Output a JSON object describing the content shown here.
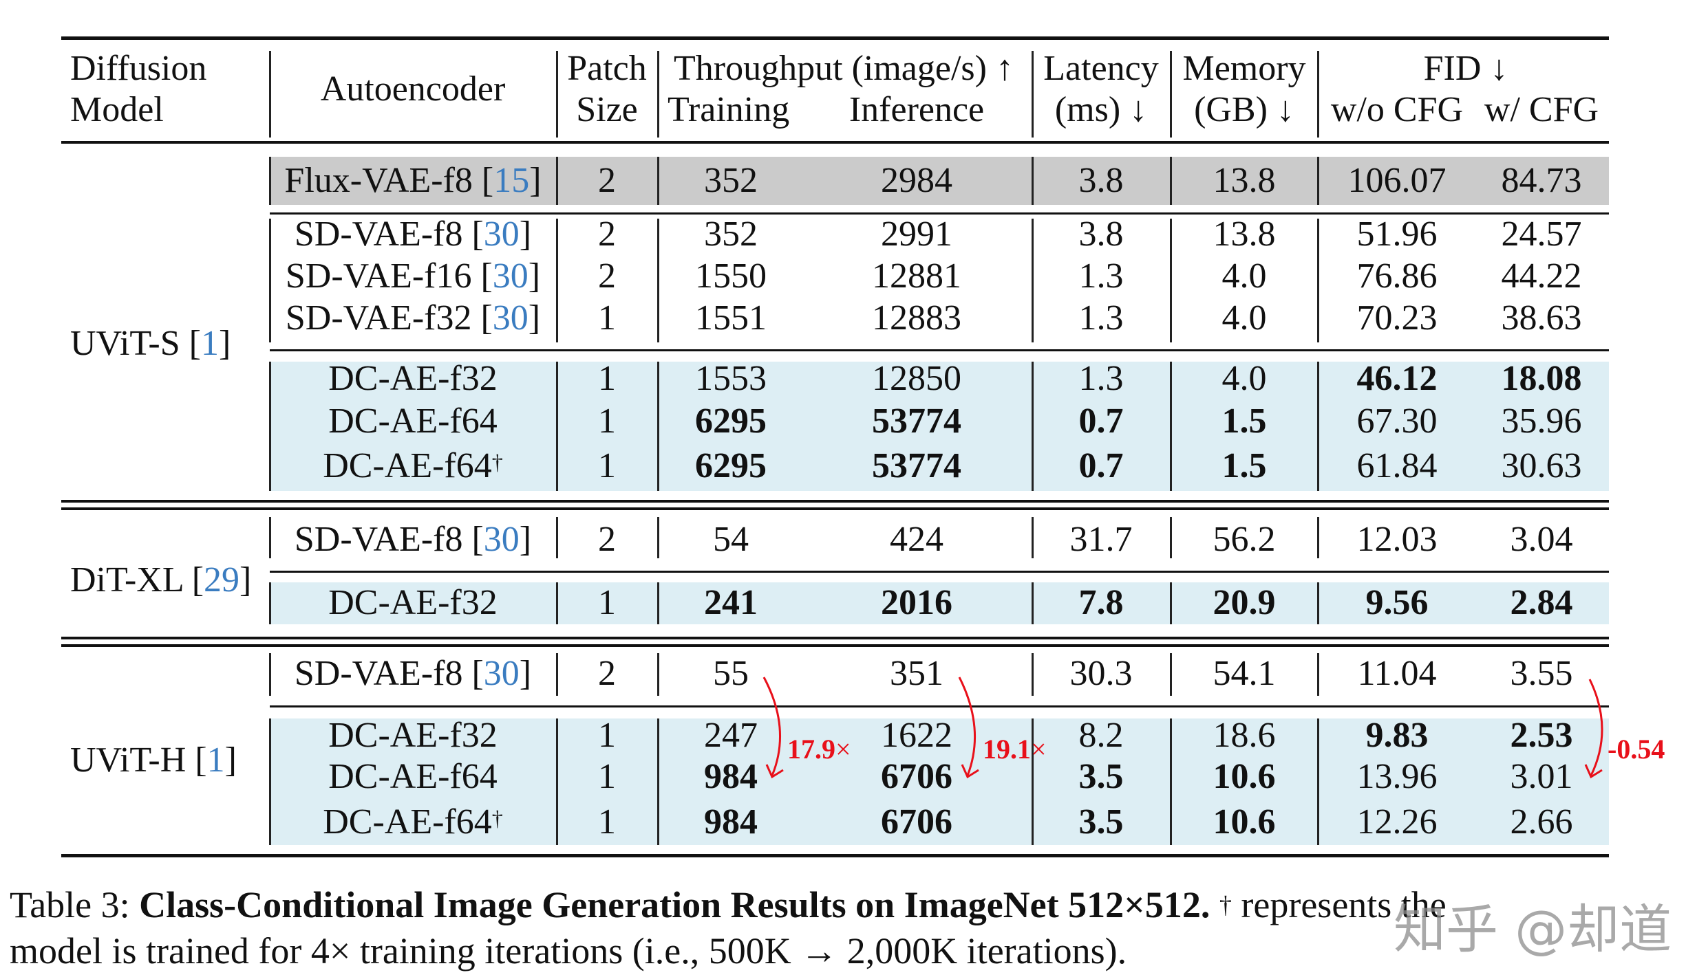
{
  "table": {
    "header": {
      "diffusion_model": [
        "Diffusion",
        "Model"
      ],
      "autoencoder": "Autoencoder",
      "patch_size": [
        "Patch",
        "Size"
      ],
      "throughput": "Throughput (image/s) ↑",
      "training": "Training",
      "inference": "Inference",
      "latency": [
        "Latency",
        "(ms) ↓"
      ],
      "memory": [
        "Memory",
        "(GB) ↓"
      ],
      "fid": "FID ↓",
      "fid_wo_cfg": "w/o CFG",
      "fid_w_cfg": "w/ CFG"
    },
    "groups": [
      {
        "model": "UViT-S",
        "model_ref": "1",
        "rows": [
          {
            "ae": "Flux-VAE-f8",
            "ref": "15",
            "dagger": false,
            "patch": "2",
            "train": "352",
            "infer": "2984",
            "latency": "3.8",
            "memory": "13.8",
            "fid_wo": "106.07",
            "fid_w": "84.73",
            "shade": "gray",
            "bold": []
          },
          {
            "ae": "SD-VAE-f8",
            "ref": "30",
            "dagger": false,
            "patch": "2",
            "train": "352",
            "infer": "2991",
            "latency": "3.8",
            "memory": "13.8",
            "fid_wo": "51.96",
            "fid_w": "24.57",
            "shade": "none",
            "bold": []
          },
          {
            "ae": "SD-VAE-f16",
            "ref": "30",
            "dagger": false,
            "patch": "2",
            "train": "1550",
            "infer": "12881",
            "latency": "1.3",
            "memory": "4.0",
            "fid_wo": "76.86",
            "fid_w": "44.22",
            "shade": "none",
            "bold": []
          },
          {
            "ae": "SD-VAE-f32",
            "ref": "30",
            "dagger": false,
            "patch": "1",
            "train": "1551",
            "infer": "12883",
            "latency": "1.3",
            "memory": "4.0",
            "fid_wo": "70.23",
            "fid_w": "38.63",
            "shade": "none",
            "bold": []
          },
          {
            "ae": "DC-AE-f32",
            "ref": "",
            "dagger": false,
            "patch": "1",
            "train": "1553",
            "infer": "12850",
            "latency": "1.3",
            "memory": "4.0",
            "fid_wo": "46.12",
            "fid_w": "18.08",
            "shade": "blue",
            "bold": [
              "fid_wo",
              "fid_w"
            ]
          },
          {
            "ae": "DC-AE-f64",
            "ref": "",
            "dagger": false,
            "patch": "1",
            "train": "6295",
            "infer": "53774",
            "latency": "0.7",
            "memory": "1.5",
            "fid_wo": "67.30",
            "fid_w": "35.96",
            "shade": "blue",
            "bold": [
              "train",
              "infer",
              "latency",
              "memory"
            ]
          },
          {
            "ae": "DC-AE-f64",
            "ref": "",
            "dagger": true,
            "patch": "1",
            "train": "6295",
            "infer": "53774",
            "latency": "0.7",
            "memory": "1.5",
            "fid_wo": "61.84",
            "fid_w": "30.63",
            "shade": "blue",
            "bold": [
              "train",
              "infer",
              "latency",
              "memory"
            ]
          }
        ]
      },
      {
        "model": "DiT-XL",
        "model_ref": "29",
        "rows": [
          {
            "ae": "SD-VAE-f8",
            "ref": "30",
            "dagger": false,
            "patch": "2",
            "train": "54",
            "infer": "424",
            "latency": "31.7",
            "memory": "56.2",
            "fid_wo": "12.03",
            "fid_w": "3.04",
            "shade": "none",
            "bold": []
          },
          {
            "ae": "DC-AE-f32",
            "ref": "",
            "dagger": false,
            "patch": "1",
            "train": "241",
            "infer": "2016",
            "latency": "7.8",
            "memory": "20.9",
            "fid_wo": "9.56",
            "fid_w": "2.84",
            "shade": "blue",
            "bold": [
              "train",
              "infer",
              "latency",
              "memory",
              "fid_wo",
              "fid_w"
            ]
          }
        ]
      },
      {
        "model": "UViT-H",
        "model_ref": "1",
        "rows": [
          {
            "ae": "SD-VAE-f8",
            "ref": "30",
            "dagger": false,
            "patch": "2",
            "train": "55",
            "infer": "351",
            "latency": "30.3",
            "memory": "54.1",
            "fid_wo": "11.04",
            "fid_w": "3.55",
            "shade": "none",
            "bold": []
          },
          {
            "ae": "DC-AE-f32",
            "ref": "",
            "dagger": false,
            "patch": "1",
            "train": "247",
            "infer": "1622",
            "latency": "8.2",
            "memory": "18.6",
            "fid_wo": "9.83",
            "fid_w": "2.53",
            "shade": "blue",
            "bold": [
              "fid_wo",
              "fid_w"
            ]
          },
          {
            "ae": "DC-AE-f64",
            "ref": "",
            "dagger": false,
            "patch": "1",
            "train": "984",
            "infer": "6706",
            "latency": "3.5",
            "memory": "10.6",
            "fid_wo": "13.96",
            "fid_w": "3.01",
            "shade": "blue",
            "bold": [
              "train",
              "infer",
              "latency",
              "memory"
            ]
          },
          {
            "ae": "DC-AE-f64",
            "ref": "",
            "dagger": true,
            "patch": "1",
            "train": "984",
            "infer": "6706",
            "latency": "3.5",
            "memory": "10.6",
            "fid_wo": "12.26",
            "fid_w": "2.66",
            "shade": "blue",
            "bold": [
              "train",
              "infer",
              "latency",
              "memory"
            ]
          }
        ]
      }
    ],
    "annotations": [
      {
        "value": "17.9",
        "suffix": "×",
        "from": "55",
        "to": "984",
        "column": "training"
      },
      {
        "value": "19.1",
        "suffix": "×",
        "from": "351",
        "to": "6706",
        "column": "inference"
      },
      {
        "value": "-0.54",
        "suffix": "",
        "from": "3.55",
        "to": "3.01",
        "column": "fid_w_cfg"
      }
    ]
  },
  "caption": {
    "label": "Table 3:",
    "title": "Class-Conditional Image Generation Results on ImageNet 512×512.",
    "text_line1": "represents the",
    "dagger": "†",
    "text_line2": "model is trained for 4× training iterations (i.e., 500K → 2,000K iterations)."
  },
  "watermark": "知乎 @却道",
  "colors": {
    "gray_band": "#cbcbcb",
    "blue_band": "#ddeef4",
    "ref_blue": "#3a7cc0",
    "annotation_red": "#e8101a"
  }
}
